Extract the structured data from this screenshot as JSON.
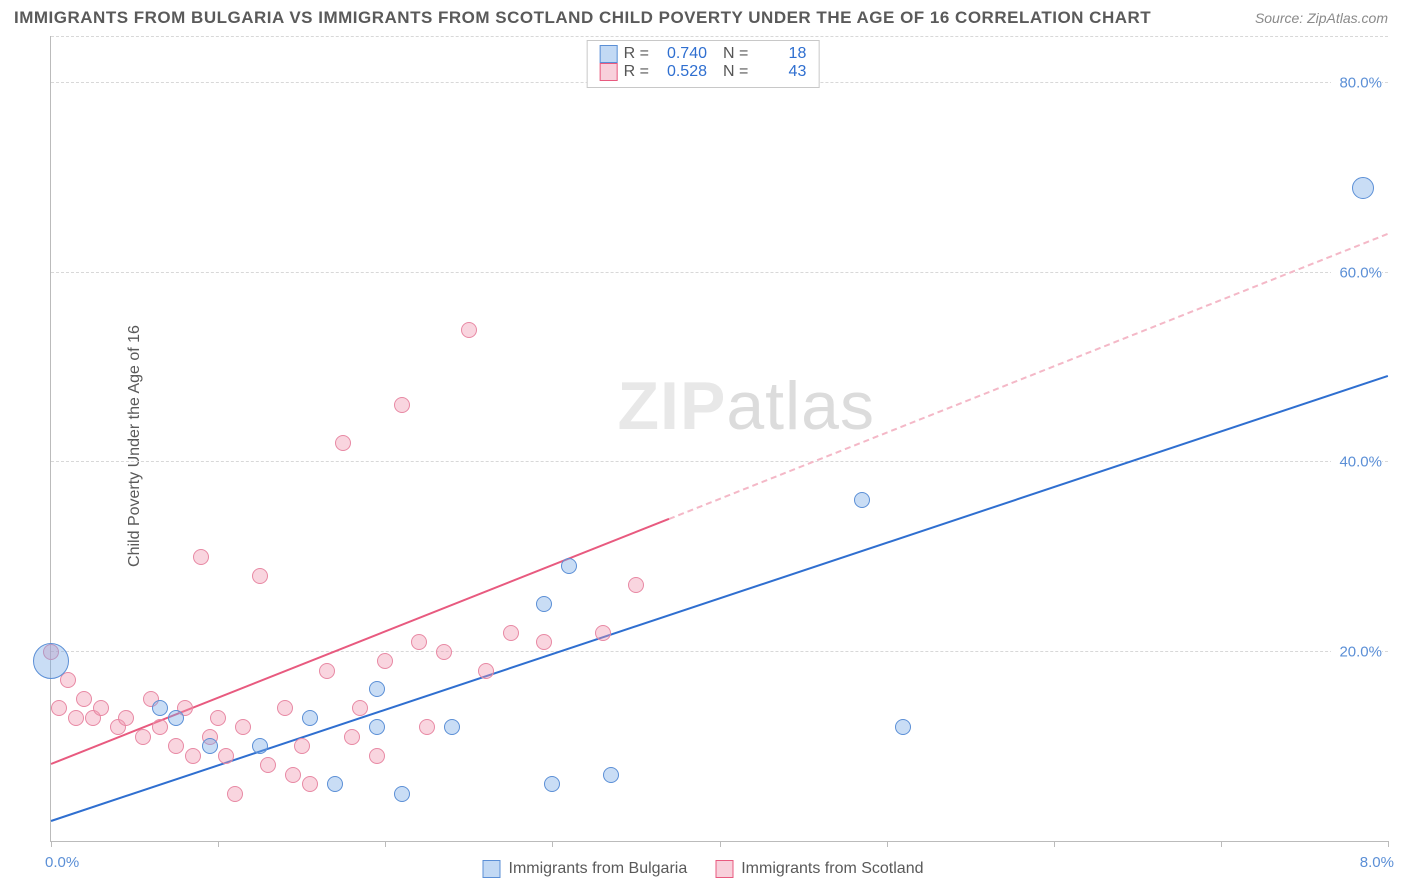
{
  "title": "IMMIGRANTS FROM BULGARIA VS IMMIGRANTS FROM SCOTLAND CHILD POVERTY UNDER THE AGE OF 16 CORRELATION CHART",
  "source": "Source: ZipAtlas.com",
  "ylabel": "Child Poverty Under the Age of 16",
  "watermark_a": "ZIP",
  "watermark_b": "atlas",
  "chart": {
    "type": "scatter",
    "xlim": [
      0,
      8.0
    ],
    "ylim": [
      0,
      85
    ],
    "x_tick_label_left": "0.0%",
    "x_tick_label_right": "8.0%",
    "x_minor_step": 1.0,
    "y_ticks": [
      20,
      40,
      60,
      80
    ],
    "y_tick_labels": [
      "20.0%",
      "40.0%",
      "60.0%",
      "80.0%"
    ],
    "grid_color": "#d8d8d8",
    "background_color": "#ffffff",
    "series": [
      {
        "name": "Immigrants from Bulgaria",
        "color_fill": "rgba(120,170,230,0.40)",
        "color_stroke": "#5b8fd6",
        "marker_radius": 8,
        "stats": {
          "R": "0.740",
          "N": "18"
        },
        "trend": {
          "y_at_x0": 2,
          "y_at_x8": 49,
          "solid_until_x": 8.0,
          "color": "#2f6fd0"
        },
        "points": [
          {
            "x": 0.0,
            "y": 19,
            "r": 18
          },
          {
            "x": 0.65,
            "y": 14
          },
          {
            "x": 0.75,
            "y": 13
          },
          {
            "x": 0.95,
            "y": 10
          },
          {
            "x": 1.25,
            "y": 10
          },
          {
            "x": 1.55,
            "y": 13
          },
          {
            "x": 1.7,
            "y": 6
          },
          {
            "x": 1.95,
            "y": 16
          },
          {
            "x": 1.95,
            "y": 12
          },
          {
            "x": 2.1,
            "y": 5
          },
          {
            "x": 2.4,
            "y": 12
          },
          {
            "x": 2.95,
            "y": 25
          },
          {
            "x": 3.0,
            "y": 6
          },
          {
            "x": 3.1,
            "y": 29
          },
          {
            "x": 3.35,
            "y": 7
          },
          {
            "x": 4.85,
            "y": 36
          },
          {
            "x": 5.1,
            "y": 12
          },
          {
            "x": 7.85,
            "y": 69,
            "r": 11
          }
        ]
      },
      {
        "name": "Immigrants from Scotland",
        "color_fill": "rgba(240,150,175,0.40)",
        "color_stroke": "#e889a4",
        "marker_radius": 8,
        "stats": {
          "R": "0.528",
          "N": "43"
        },
        "trend": {
          "y_at_x0": 8,
          "y_at_x8": 64,
          "solid_until_x": 3.7,
          "color": "#e85a7f",
          "dash_color": "#f4b8c7"
        },
        "points": [
          {
            "x": 0.0,
            "y": 20
          },
          {
            "x": 0.05,
            "y": 14
          },
          {
            "x": 0.1,
            "y": 17
          },
          {
            "x": 0.15,
            "y": 13
          },
          {
            "x": 0.2,
            "y": 15
          },
          {
            "x": 0.25,
            "y": 13
          },
          {
            "x": 0.3,
            "y": 14
          },
          {
            "x": 0.4,
            "y": 12
          },
          {
            "x": 0.45,
            "y": 13
          },
          {
            "x": 0.55,
            "y": 11
          },
          {
            "x": 0.6,
            "y": 15
          },
          {
            "x": 0.65,
            "y": 12
          },
          {
            "x": 0.75,
            "y": 10
          },
          {
            "x": 0.8,
            "y": 14
          },
          {
            "x": 0.85,
            "y": 9
          },
          {
            "x": 0.9,
            "y": 30
          },
          {
            "x": 0.95,
            "y": 11
          },
          {
            "x": 1.0,
            "y": 13
          },
          {
            "x": 1.05,
            "y": 9
          },
          {
            "x": 1.1,
            "y": 5
          },
          {
            "x": 1.15,
            "y": 12
          },
          {
            "x": 1.25,
            "y": 28
          },
          {
            "x": 1.3,
            "y": 8
          },
          {
            "x": 1.4,
            "y": 14
          },
          {
            "x": 1.45,
            "y": 7
          },
          {
            "x": 1.5,
            "y": 10
          },
          {
            "x": 1.55,
            "y": 6
          },
          {
            "x": 1.65,
            "y": 18
          },
          {
            "x": 1.75,
            "y": 42
          },
          {
            "x": 1.8,
            "y": 11
          },
          {
            "x": 1.85,
            "y": 14
          },
          {
            "x": 1.95,
            "y": 9
          },
          {
            "x": 2.0,
            "y": 19
          },
          {
            "x": 2.1,
            "y": 46
          },
          {
            "x": 2.2,
            "y": 21
          },
          {
            "x": 2.25,
            "y": 12
          },
          {
            "x": 2.35,
            "y": 20
          },
          {
            "x": 2.5,
            "y": 54
          },
          {
            "x": 2.6,
            "y": 18
          },
          {
            "x": 2.75,
            "y": 22
          },
          {
            "x": 2.95,
            "y": 21
          },
          {
            "x": 3.3,
            "y": 22
          },
          {
            "x": 3.5,
            "y": 27
          }
        ]
      }
    ]
  },
  "legend_bottom": [
    {
      "label": "Immigrants from Bulgaria",
      "swatch": "blue"
    },
    {
      "label": "Immigrants from Scotland",
      "swatch": "pink"
    }
  ]
}
